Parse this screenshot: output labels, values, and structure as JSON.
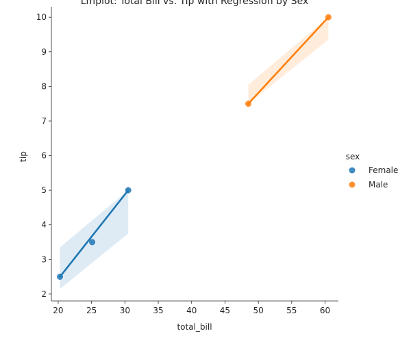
{
  "chart_data": {
    "type": "scatter",
    "title": "Lmplot: Total Bill vs. Tip with Regression by Sex",
    "xlabel": "total_bill",
    "ylabel": "tip",
    "xlim": [
      18.98,
      62.0
    ],
    "ylim": [
      1.8,
      10.3
    ],
    "xticks": [
      20,
      25,
      30,
      35,
      40,
      45,
      50,
      55,
      60
    ],
    "yticks": [
      2,
      3,
      4,
      5,
      6,
      7,
      8,
      9,
      10
    ],
    "grid": false,
    "legend": {
      "title": "sex",
      "placement": "right"
    },
    "series": [
      {
        "name": "Female",
        "color": "#1f77b4",
        "points": [
          {
            "x": 20.27,
            "y": 2.5
          },
          {
            "x": 25.1,
            "y": 3.5
          },
          {
            "x": 30.5,
            "y": 5.0
          }
        ],
        "band": {
          "x": [
            20.27,
            30.5
          ],
          "upper": [
            3.35,
            5.0
          ],
          "lower": [
            2.15,
            3.75
          ]
        }
      },
      {
        "name": "Male",
        "color": "#ff7f0e",
        "points": [
          {
            "x": 48.5,
            "y": 7.5
          },
          {
            "x": 60.5,
            "y": 10.0
          }
        ],
        "band": {
          "x": [
            48.5,
            60.5
          ],
          "upper": [
            8.05,
            10.0
          ],
          "lower": [
            7.5,
            9.35
          ]
        }
      }
    ]
  }
}
